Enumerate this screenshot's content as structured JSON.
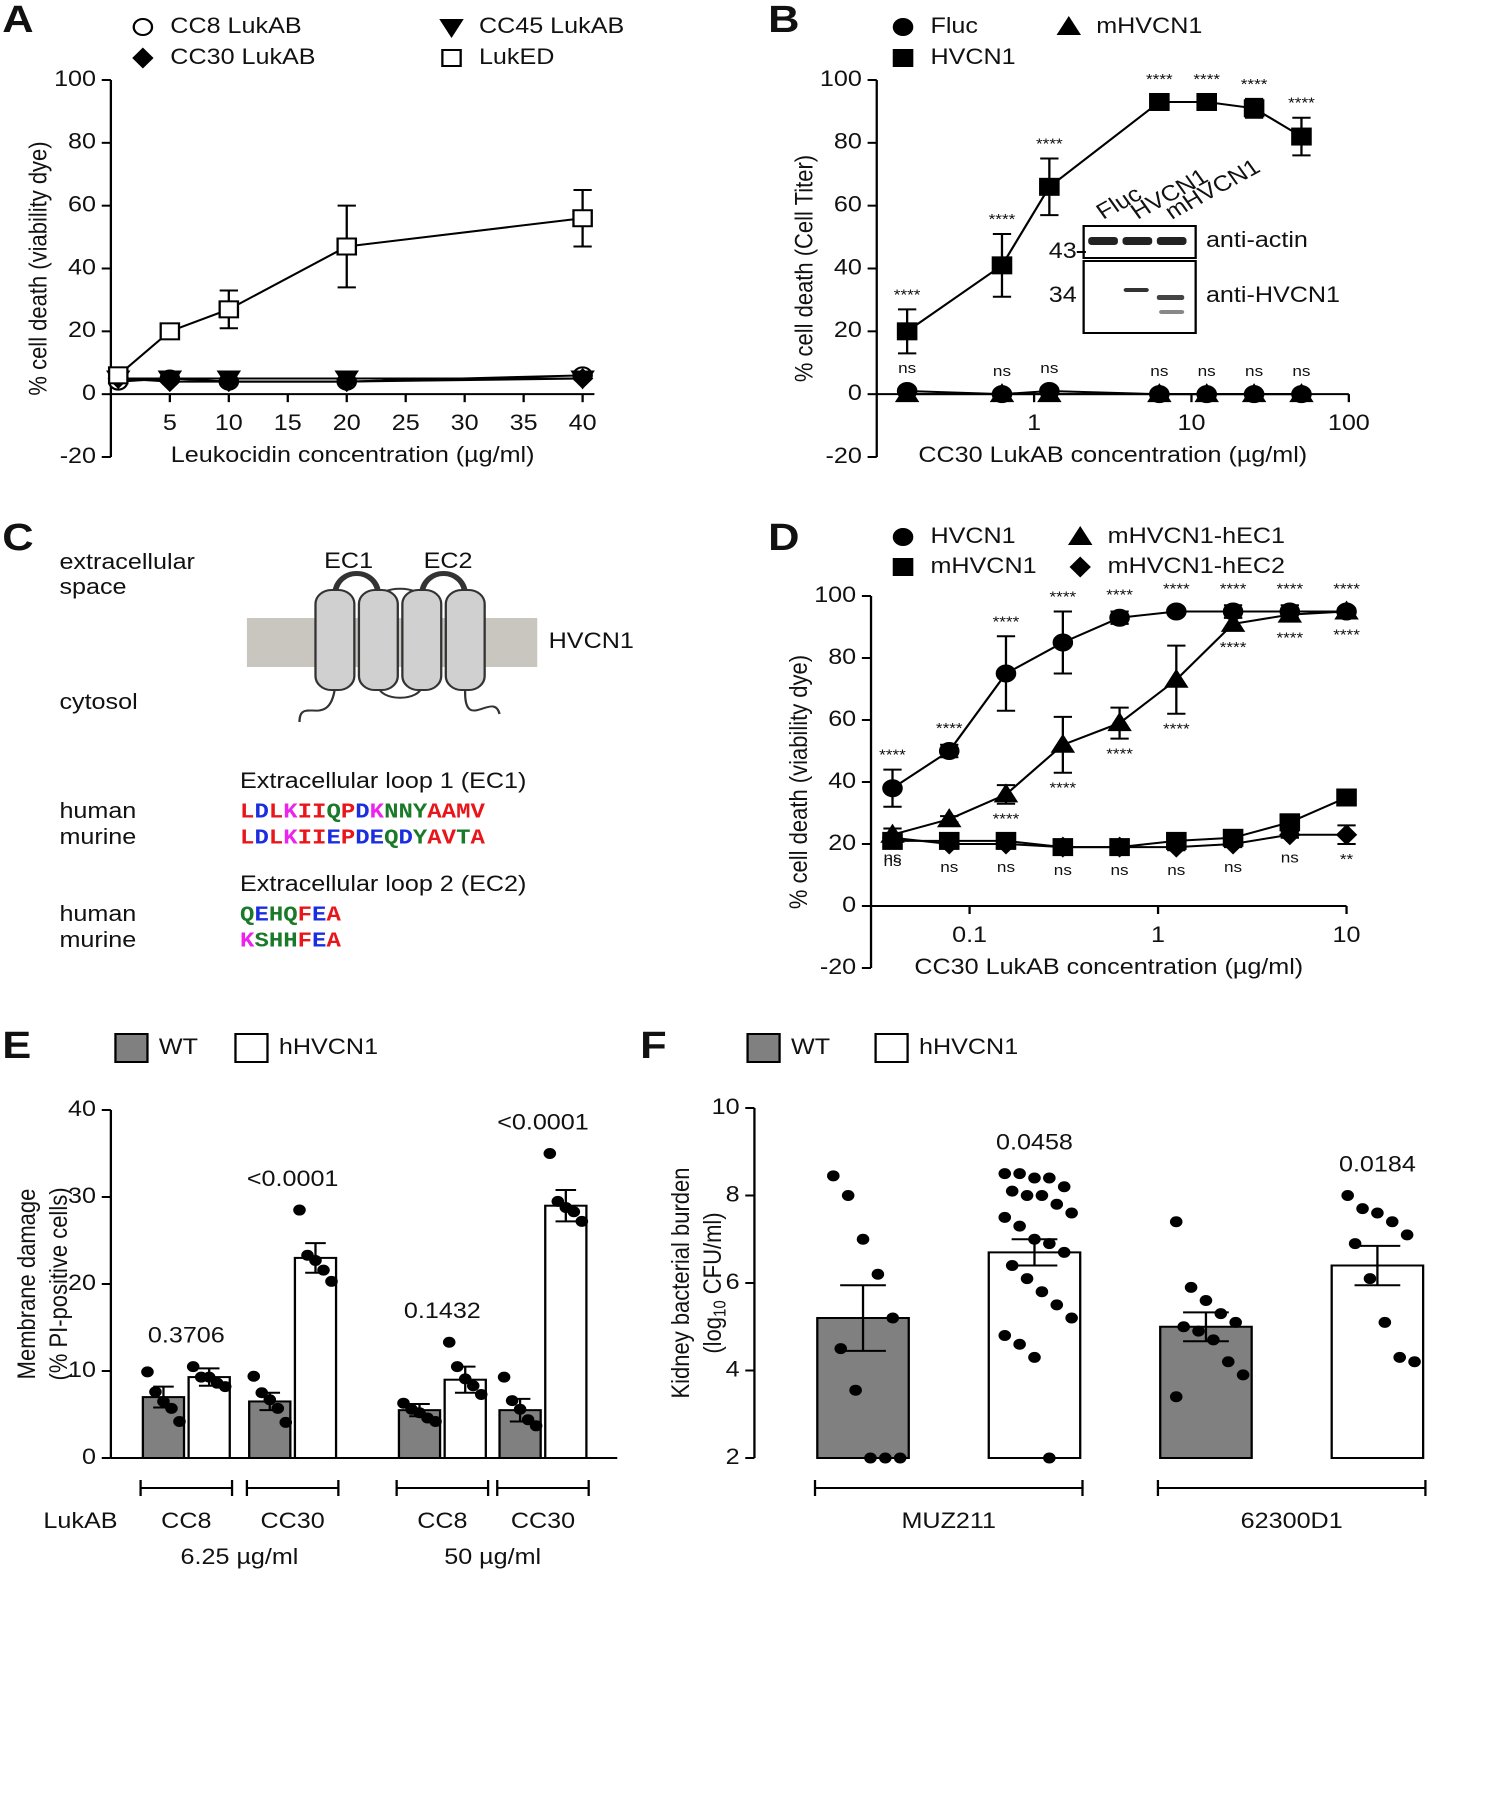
{
  "chart_data": [
    {
      "panel": "A",
      "type": "line",
      "x_label": "Leukocidin concentration (µg/ml)",
      "y_label": "% cell death (viability dye)",
      "xlim": [
        0,
        41
      ],
      "xticks": [
        5,
        10,
        15,
        20,
        25,
        30,
        35,
        40
      ],
      "ylim": [
        -20,
        100
      ],
      "yticks": [
        -20,
        0,
        20,
        40,
        60,
        80,
        100
      ],
      "x": [
        0.625,
        5,
        10,
        20,
        40
      ],
      "series": [
        {
          "name": "CC8 LukAB",
          "marker": "circle-open",
          "color": "#000000",
          "values": [
            4,
            5,
            4,
            4,
            6
          ]
        },
        {
          "name": "CC30 LukAB",
          "marker": "diamond",
          "color": "#000000",
          "values": [
            5,
            4,
            4,
            4,
            5
          ]
        },
        {
          "name": "CC45 LukAB",
          "marker": "triangle-down",
          "color": "#000000",
          "values": [
            5,
            5,
            5,
            5,
            5
          ]
        },
        {
          "name": "LukED",
          "marker": "square-open",
          "color": "#000000",
          "values": [
            6,
            20,
            27,
            47,
            56
          ],
          "errors": [
            1,
            2,
            6,
            13,
            9
          ]
        }
      ]
    },
    {
      "panel": "B",
      "type": "line",
      "x_log": true,
      "x_label": "CC30 LukAB concentration (µg/ml)",
      "y_label": "% cell death (Cell Titer)",
      "xlim": [
        0.1,
        100
      ],
      "xticks": [
        1,
        10,
        100
      ],
      "ylim": [
        -20,
        100
      ],
      "yticks": [
        -20,
        0,
        20,
        40,
        60,
        80,
        100
      ],
      "x": [
        0.156,
        0.625,
        1.25,
        6.25,
        12.5,
        25,
        50
      ],
      "series": [
        {
          "name": "Fluc",
          "marker": "circle",
          "color": "#000000",
          "values": [
            1,
            0,
            1,
            0,
            0,
            0,
            0
          ],
          "annotations": [
            "ns",
            "ns",
            "ns",
            "ns",
            "ns",
            "ns",
            "ns"
          ],
          "annotation_position": "above"
        },
        {
          "name": "HVCN1",
          "marker": "square",
          "color": "#000000",
          "values": [
            20,
            41,
            66,
            93,
            93,
            91,
            82
          ],
          "errors": [
            7,
            10,
            9,
            2,
            1,
            3,
            6
          ],
          "annotations": [
            "****",
            "****",
            "****",
            "****",
            "****",
            "****",
            "****"
          ],
          "annotation_position": "above"
        },
        {
          "name": "mHVCN1",
          "marker": "triangle",
          "color": "#000000",
          "values": [
            0,
            0,
            0,
            0,
            0,
            0,
            0
          ]
        }
      ],
      "blot": {
        "lanes": [
          "Fluc",
          "HVCN1",
          "mHVCN1"
        ],
        "probes": [
          "anti-actin",
          "anti-HVCN1"
        ],
        "size_markers": [
          "43",
          "34"
        ]
      }
    },
    {
      "panel": "D",
      "type": "line",
      "x_log": true,
      "x_label": "CC30 LukAB concentration (µg/ml)",
      "y_label": "% cell death (viability dye)",
      "xlim": [
        0.03,
        10
      ],
      "xticks": [
        0.1,
        1,
        10
      ],
      "ylim": [
        -20,
        100
      ],
      "yticks": [
        -20,
        0,
        20,
        40,
        60,
        80,
        100
      ],
      "x": [
        0.039,
        0.078,
        0.156,
        0.3125,
        0.625,
        1.25,
        2.5,
        5,
        10
      ],
      "series": [
        {
          "name": "HVCN1",
          "marker": "circle",
          "color": "#000000",
          "values": [
            38,
            50,
            75,
            85,
            93,
            95,
            95,
            95,
            95
          ],
          "errors": [
            6,
            2,
            12,
            10,
            2,
            0.5,
            2,
            2,
            1
          ],
          "annotations": [
            "****",
            "****",
            "****",
            "****",
            "****",
            "****",
            "****",
            "****",
            "****"
          ],
          "annotation_position": "above"
        },
        {
          "name": "mHVCN1",
          "marker": "square",
          "color": "#000000",
          "values": [
            21,
            21,
            21,
            19,
            19,
            21,
            22,
            27,
            35
          ]
        },
        {
          "name": "mHVCN1-hEC1",
          "marker": "triangle",
          "color": "#000000",
          "values": [
            23,
            28,
            36,
            52,
            59,
            73,
            91,
            94,
            95
          ],
          "errors": [
            2,
            1,
            3,
            9,
            5,
            11,
            2,
            2,
            1
          ],
          "annotations": [
            "ns",
            "ns",
            "****",
            "****",
            "****",
            "****",
            "****",
            "****",
            "****"
          ],
          "annotation_position": "below"
        },
        {
          "name": "mHVCN1-hEC2",
          "marker": "diamond",
          "color": "#000000",
          "values": [
            22,
            20,
            20,
            19,
            19,
            19,
            20,
            23,
            23
          ],
          "errors": [
            1,
            1,
            1,
            1,
            1,
            1,
            1,
            1,
            3
          ],
          "annotations": [
            "ns",
            "ns",
            "ns",
            "ns",
            "ns",
            "ns",
            "ns",
            "ns",
            "**"
          ],
          "annotation_position": "below"
        }
      ]
    },
    {
      "panel": "E",
      "type": "bar",
      "y_label": [
        "Membrane damage",
        "(% PI-positive cells)"
      ],
      "row_label": "LukAB",
      "ylim": [
        0,
        40
      ],
      "yticks": [
        0,
        10,
        20,
        30,
        40
      ],
      "groups": [
        {
          "label": "6.25 µg/ml",
          "categories": [
            "CC8",
            "CC30"
          ]
        },
        {
          "label": "50 µg/ml",
          "categories": [
            "CC8",
            "CC30"
          ]
        }
      ],
      "p_values": [
        "0.3706",
        "<0.0001",
        "0.1432",
        "<0.0001"
      ],
      "series": [
        {
          "name": "WT",
          "color": "#808080",
          "values": [
            7,
            6.5,
            5.5,
            5.5
          ],
          "errors": [
            1.2,
            1,
            0.7,
            1.3
          ],
          "points": [
            [
              9.9,
              7.6,
              6.5,
              5.7,
              4.2
            ],
            [
              9.4,
              7.5,
              6.7,
              5.7,
              4.1
            ],
            [
              6.3,
              5.6,
              5.2,
              4.6,
              4.2
            ],
            [
              9.3,
              6.6,
              5.6,
              4.4,
              3.7
            ]
          ]
        },
        {
          "name": "hHVCN1",
          "color": "#ffffff",
          "values": [
            9.3,
            23,
            9,
            29
          ],
          "errors": [
            1,
            1.7,
            1.5,
            1.8
          ],
          "points": [
            [
              10.5,
              9.3,
              9.3,
              8.6,
              8.2
            ],
            [
              28.5,
              23.3,
              22.7,
              21.6,
              20.3
            ],
            [
              13.3,
              10.5,
              9.1,
              8.3,
              7.3
            ],
            [
              35,
              29.5,
              28.8,
              28.3,
              27.2
            ]
          ]
        }
      ]
    },
    {
      "panel": "F",
      "type": "bar",
      "y_label": "Kidney bacterial burden",
      "y_label_unit": [
        "(log",
        "10",
        " CFU/ml)"
      ],
      "ylim": [
        2,
        10
      ],
      "yticks": [
        2,
        4,
        6,
        8,
        10
      ],
      "categories": [
        "MUZ211",
        "62300D1"
      ],
      "p_values": [
        "0.0458",
        "0.0184"
      ],
      "series": [
        {
          "name": "WT",
          "color": "#808080",
          "values": [
            5.2,
            5.0
          ],
          "errors": [
            0.75,
            0.33
          ],
          "points": [
            [
              8.45,
              8.0,
              7.0,
              6.2,
              5.2,
              4.5,
              3.55,
              2,
              2,
              2
            ],
            [
              7.4,
              5.9,
              5.6,
              5.3,
              5.1,
              5.0,
              4.9,
              4.7,
              4.2,
              3.9,
              3.4
            ]
          ]
        },
        {
          "name": "hHVCN1",
          "color": "#ffffff",
          "values": [
            6.7,
            6.4
          ],
          "errors": [
            0.3,
            0.45
          ],
          "points": [
            [
              8.5,
              8.5,
              8.4,
              8.4,
              8.2,
              8.1,
              8.0,
              8.0,
              7.8,
              7.6,
              7.5,
              7.3,
              7.0,
              6.9,
              6.7,
              6.4,
              6.1,
              5.8,
              5.5,
              5.2,
              4.8,
              4.6,
              4.3,
              2
            ],
            [
              8.0,
              7.7,
              7.6,
              7.4,
              7.1,
              6.9,
              6.1,
              5.1,
              4.3,
              4.2
            ]
          ]
        }
      ]
    }
  ],
  "diagram": {
    "panel": "C",
    "outside_label": [
      "extracellular",
      "space"
    ],
    "inside_label": "cytosol",
    "protein": "HVCN1",
    "loops": [
      "EC1",
      "EC2"
    ],
    "alignments": [
      {
        "title": "Extracellular loop 1 (EC1)",
        "rows": [
          {
            "species": "human",
            "sequence": "LDLKIIQPDKNNYAAMV"
          },
          {
            "species": "murine",
            "sequence": "LDLKIIEPDEQDYAVTA"
          }
        ]
      },
      {
        "title": "Extracellular loop 2 (EC2)",
        "rows": [
          {
            "species": "human",
            "sequence": "QEHQFEA"
          },
          {
            "species": "murine",
            "sequence": "KSHHFEA"
          }
        ]
      }
    ]
  }
}
